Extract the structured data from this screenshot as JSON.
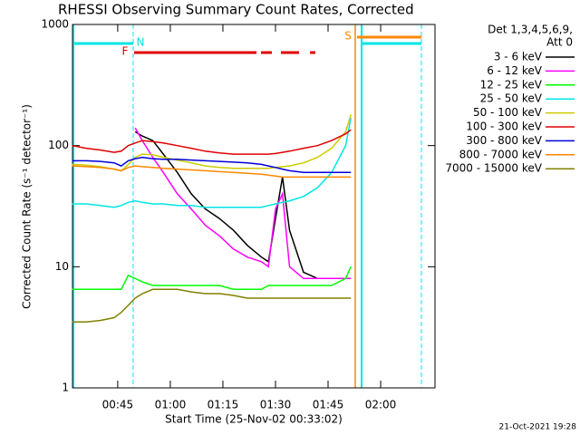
{
  "chart_data": {
    "type": "line",
    "title": "RHESSI Observing Summary Count Rates, Corrected",
    "xlabel": "Start Time (25-Nov-02 00:33:02)",
    "ylabel": "Corrected Count Rate (s⁻¹ detector⁻¹)",
    "legend_title": [
      "Det 1,3,4,5,6,9,",
      "Att 0"
    ],
    "footer": "21-Oct-2021 19:28",
    "annotations": [
      "F",
      "N",
      "S"
    ],
    "log_y": true,
    "ylim": [
      1,
      1000
    ],
    "yticks": [
      1,
      10,
      100,
      1000
    ],
    "xlim": [
      32.1,
      135.5
    ],
    "xticks": [
      {
        "value": 45,
        "label": "00:45"
      },
      {
        "value": 60,
        "label": "01:00"
      },
      {
        "value": 75,
        "label": "01:15"
      },
      {
        "value": 90,
        "label": "01:30"
      },
      {
        "value": 105,
        "label": "01:45"
      },
      {
        "value": 120,
        "label": "02:00"
      }
    ],
    "x": [
      32,
      36,
      40,
      44,
      46,
      48,
      50,
      52,
      55,
      58,
      62,
      66,
      70,
      74,
      78,
      82,
      86,
      88,
      90,
      92,
      94,
      98,
      102,
      106,
      110,
      111.5
    ],
    "series": [
      {
        "name": "3 - 6 keV",
        "color": "#000000",
        "values": [
          null,
          null,
          null,
          null,
          null,
          null,
          130,
          120,
          110,
          85,
          60,
          40,
          30,
          25,
          20,
          15,
          12,
          11,
          25,
          55,
          20,
          9,
          8,
          8,
          8,
          8
        ]
      },
      {
        "name": "6 - 12 keV",
        "color": "#ff00ff",
        "values": [
          null,
          null,
          null,
          null,
          null,
          null,
          140,
          110,
          80,
          60,
          40,
          30,
          22,
          18,
          14,
          12,
          11,
          10,
          30,
          40,
          10,
          8,
          8,
          8,
          8,
          8
        ]
      },
      {
        "name": "12 - 25 keV",
        "color": "#00ff00",
        "values": [
          6.5,
          6.5,
          6.5,
          6.5,
          6.5,
          8.5,
          8,
          7.5,
          7,
          7,
          7,
          7,
          7,
          7,
          6.5,
          6.5,
          6.5,
          7,
          7,
          7,
          7,
          7,
          7,
          7,
          8,
          10
        ]
      },
      {
        "name": "25 - 50 keV",
        "color": "#00e5e5",
        "values": [
          33,
          33,
          32,
          31,
          32,
          34,
          35,
          34,
          33,
          33,
          32,
          32,
          31,
          31,
          31,
          31,
          31,
          32,
          33,
          34,
          35,
          38,
          45,
          60,
          100,
          170
        ]
      },
      {
        "name": "50 - 100 keV",
        "color": "#cccc00",
        "values": [
          70,
          69,
          67,
          64,
          62,
          70,
          80,
          85,
          84,
          80,
          76,
          72,
          68,
          66,
          65,
          65,
          65,
          65,
          66,
          67,
          68,
          72,
          80,
          95,
          130,
          180
        ]
      },
      {
        "name": "100 - 300 keV",
        "color": "#e00000",
        "values": [
          100,
          95,
          92,
          88,
          90,
          100,
          105,
          110,
          108,
          105,
          100,
          95,
          90,
          87,
          85,
          85,
          85,
          85,
          86,
          88,
          90,
          95,
          100,
          110,
          125,
          135
        ]
      },
      {
        "name": "300 - 800 keV",
        "color": "#0000dd",
        "values": [
          75,
          75,
          74,
          72,
          68,
          75,
          78,
          80,
          78,
          77,
          77,
          76,
          75,
          74,
          73,
          72,
          70,
          68,
          66,
          64,
          62,
          60,
          60,
          60,
          60,
          60
        ]
      },
      {
        "name": "800 - 7000 keV",
        "color": "#ff8800",
        "values": [
          68,
          67,
          66,
          64,
          62,
          66,
          68,
          67,
          66,
          65,
          64,
          63,
          62,
          61,
          60,
          59,
          58,
          57,
          56,
          55,
          55,
          55,
          55,
          55,
          55,
          55
        ]
      },
      {
        "name": "7000 - 15000 keV",
        "color": "#808000",
        "values": [
          3.5,
          3.5,
          3.6,
          3.8,
          4.2,
          4.8,
          5.5,
          6,
          6.5,
          6.5,
          6.5,
          6.2,
          6,
          6,
          5.8,
          5.5,
          5.5,
          5.5,
          5.5,
          5.5,
          5.5,
          5.5,
          5.5,
          5.5,
          5.5,
          5.5
        ]
      }
    ]
  }
}
